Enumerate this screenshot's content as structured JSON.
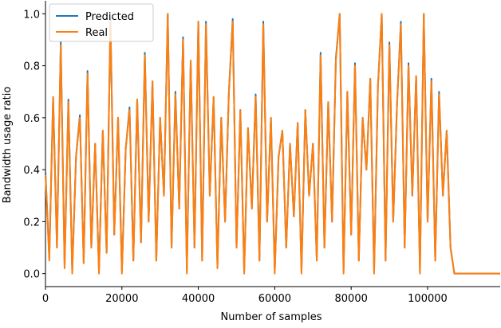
{
  "chart_data": {
    "type": "line",
    "xlabel": "Number of samples",
    "ylabel": "Bandwidth usage ratio",
    "x": [
      0,
      1000,
      2000,
      3000,
      4000,
      5000,
      6000,
      7000,
      8000,
      9000,
      10000,
      11000,
      12000,
      13000,
      14000,
      15000,
      16000,
      17000,
      18000,
      19000,
      20000,
      21000,
      22000,
      23000,
      24000,
      25000,
      26000,
      27000,
      28000,
      29000,
      30000,
      31000,
      32000,
      33000,
      34000,
      35000,
      36000,
      37000,
      38000,
      39000,
      40000,
      41000,
      42000,
      43000,
      44000,
      45000,
      46000,
      47000,
      48000,
      49000,
      50000,
      51000,
      52000,
      53000,
      54000,
      55000,
      56000,
      57000,
      58000,
      59000,
      60000,
      61000,
      62000,
      63000,
      64000,
      65000,
      66000,
      67000,
      68000,
      69000,
      70000,
      71000,
      72000,
      73000,
      74000,
      75000,
      76000,
      77000,
      78000,
      79000,
      80000,
      81000,
      82000,
      83000,
      84000,
      85000,
      86000,
      87000,
      88000,
      89000,
      90000,
      91000,
      92000,
      93000,
      94000,
      95000,
      96000,
      97000,
      98000,
      99000,
      100000,
      101000,
      102000,
      103000,
      104000,
      105000,
      106000,
      107000,
      119000
    ],
    "series": [
      {
        "name": "Predicted",
        "color": "#1f77b4",
        "values": [
          0.39,
          0.06,
          0.68,
          0.1,
          0.89,
          0.03,
          0.67,
          0.01,
          0.45,
          0.61,
          0.04,
          0.78,
          0.1,
          0.5,
          0.01,
          0.55,
          0.08,
          0.98,
          0.15,
          0.6,
          0.01,
          0.48,
          0.64,
          0.05,
          0.67,
          0.12,
          0.85,
          0.2,
          0.74,
          0.05,
          0.6,
          0.3,
          1.0,
          0.1,
          0.7,
          0.25,
          0.91,
          0.01,
          0.82,
          0.1,
          0.97,
          0.05,
          0.97,
          0.3,
          0.68,
          0.03,
          0.6,
          0.2,
          0.7,
          0.98,
          0.1,
          0.63,
          0.01,
          0.56,
          0.25,
          0.69,
          0.05,
          0.97,
          0.2,
          0.6,
          0.01,
          0.45,
          0.55,
          0.1,
          0.5,
          0.22,
          0.58,
          0.01,
          0.63,
          0.3,
          0.5,
          0.05,
          0.85,
          0.1,
          0.66,
          0.2,
          0.83,
          1.0,
          0.01,
          0.7,
          0.15,
          0.81,
          0.05,
          0.6,
          0.4,
          0.75,
          0.01,
          0.72,
          1.0,
          0.05,
          0.89,
          0.2,
          0.65,
          0.97,
          0.1,
          0.81,
          0.3,
          0.76,
          0.01,
          1.0,
          0.2,
          0.75,
          0.05,
          0.7,
          0.3,
          0.55,
          0.1,
          0.0,
          0.0
        ]
      },
      {
        "name": "Real",
        "color": "#ff7f0e",
        "values": [
          0.38,
          0.05,
          0.68,
          0.1,
          0.88,
          0.02,
          0.66,
          0.0,
          0.45,
          0.6,
          0.04,
          0.77,
          0.1,
          0.5,
          0.0,
          0.55,
          0.08,
          0.97,
          0.15,
          0.6,
          0.0,
          0.48,
          0.63,
          0.05,
          0.67,
          0.12,
          0.84,
          0.2,
          0.74,
          0.05,
          0.6,
          0.3,
          1.0,
          0.1,
          0.69,
          0.25,
          0.9,
          0.0,
          0.82,
          0.1,
          0.97,
          0.05,
          0.96,
          0.3,
          0.68,
          0.02,
          0.6,
          0.2,
          0.7,
          0.97,
          0.1,
          0.63,
          0.0,
          0.56,
          0.25,
          0.68,
          0.05,
          0.96,
          0.2,
          0.6,
          0.0,
          0.45,
          0.55,
          0.1,
          0.5,
          0.22,
          0.58,
          0.0,
          0.63,
          0.3,
          0.5,
          0.05,
          0.84,
          0.1,
          0.66,
          0.2,
          0.82,
          1.0,
          0.0,
          0.7,
          0.15,
          0.8,
          0.05,
          0.6,
          0.4,
          0.75,
          0.0,
          0.72,
          1.0,
          0.05,
          0.88,
          0.2,
          0.65,
          0.96,
          0.1,
          0.8,
          0.3,
          0.76,
          0.0,
          1.0,
          0.2,
          0.74,
          0.05,
          0.69,
          0.3,
          0.55,
          0.1,
          0.0,
          0.0
        ]
      }
    ],
    "xlim": [
      0,
      119000
    ],
    "xticks": [
      0,
      20000,
      40000,
      60000,
      80000,
      100000
    ],
    "ylim": [
      -0.05,
      1.05
    ],
    "yticks": [
      {
        "value": 0,
        "label": "0.0"
      },
      {
        "value": 0.2,
        "label": "0.2"
      },
      {
        "value": 0.4,
        "label": "0.4"
      },
      {
        "value": 0.6,
        "label": "0.6"
      },
      {
        "value": 0.8,
        "label": "0.8"
      },
      {
        "value": 1,
        "label": "1.0"
      }
    ],
    "legend": "upper left"
  }
}
